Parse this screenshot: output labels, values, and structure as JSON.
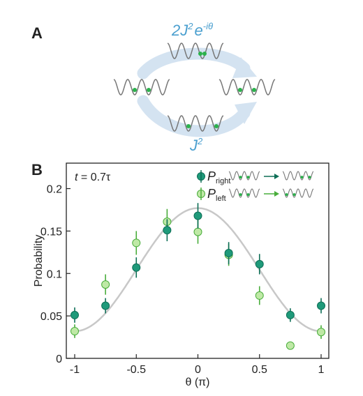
{
  "panel_a": {
    "label": "A",
    "top_main": "2J",
    "top_sup": "2",
    "top_e": "e",
    "top_exp": "-iθ",
    "bottom_main": "J",
    "bottom_sup": "2"
  },
  "panel_b": {
    "label": "B",
    "time_var": "t",
    "time_rest": " = 0.7τ"
  },
  "colors": {
    "dark": "#1f9a7a",
    "dark_edge": "#0d6e56",
    "light": "#bfe9a6",
    "light_edge": "#49ad3b",
    "curve": "#c8c8c8",
    "arrow": "#d4e3f1",
    "atom": "#2bb24c",
    "lattice": "#777777"
  },
  "chart_data": {
    "type": "scatter",
    "xlabel": "θ (π)",
    "ylabel": "Probability",
    "xlim": [
      -1,
      1
    ],
    "ylim": [
      0,
      0.23
    ],
    "xticks": [
      -1,
      -0.5,
      0,
      0.5,
      1
    ],
    "xtick_labels": [
      "-1",
      "-0.5",
      "0",
      "0.5",
      "1"
    ],
    "yticks": [
      0,
      0.05,
      0.1,
      0.15,
      0.2
    ],
    "ytick_labels": [
      "0",
      "0.05",
      "0.1",
      "0.15",
      "0.2"
    ],
    "legend": [
      {
        "symbol": "P",
        "subscript": "right"
      },
      {
        "symbol": "P",
        "subscript": "left"
      }
    ],
    "series": [
      {
        "name": "right",
        "x": [
          -1,
          -0.75,
          -0.5,
          -0.25,
          0,
          0.25,
          0.5,
          0.75,
          1
        ],
        "y": [
          0.051,
          0.062,
          0.107,
          0.151,
          0.168,
          0.124,
          0.111,
          0.051,
          0.062
        ],
        "err": [
          0.009,
          0.009,
          0.012,
          0.013,
          0.015,
          0.013,
          0.012,
          0.008,
          0.009
        ]
      },
      {
        "name": "left",
        "x": [
          -1,
          -0.75,
          -0.5,
          -0.25,
          0,
          0.25,
          0.5,
          0.75,
          1
        ],
        "y": [
          0.032,
          0.087,
          0.136,
          0.161,
          0.149,
          0.122,
          0.074,
          0.015,
          0.031
        ],
        "err": [
          0.008,
          0.012,
          0.014,
          0.015,
          0.014,
          0.013,
          0.011,
          0.004,
          0.008
        ]
      }
    ],
    "theory_curve": {
      "center": 0.177,
      "offset": 0.032
    }
  }
}
